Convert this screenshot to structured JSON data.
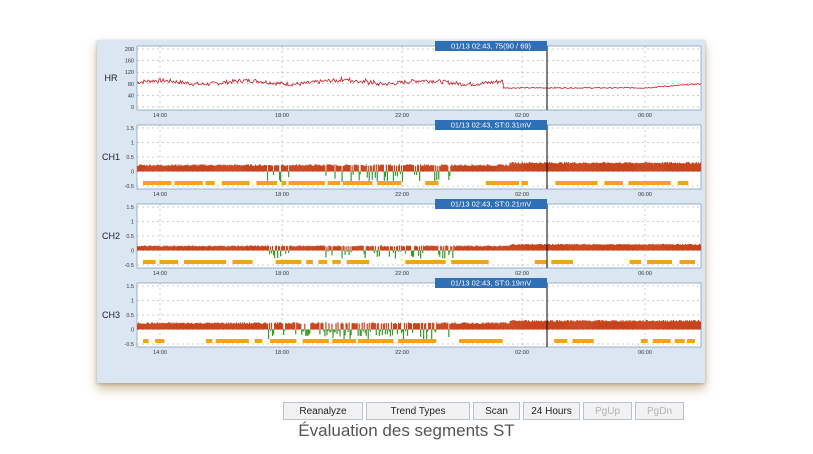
{
  "panels": [
    {
      "label": "HR",
      "readout": "01/13 02:43, 75(90 / 69)",
      "yticks": [
        "200",
        "160",
        "120",
        "80",
        "40",
        "0"
      ],
      "xticks": [
        "14:00",
        "18:00",
        "22:00",
        "02:00",
        "06:00"
      ]
    },
    {
      "label": "CH1",
      "readout": "01/13 02:43, ST:0.31mV",
      "yticks": [
        "1.5",
        "1",
        "0.5",
        "0",
        "-0.5"
      ],
      "xticks": [
        "14:00",
        "18:00",
        "22:00",
        "02:00",
        "06:00"
      ]
    },
    {
      "label": "CH2",
      "readout": "01/13 02:43, ST:0.21mV",
      "yticks": [
        "1.5",
        "1",
        "0.5",
        "0",
        "-0.5"
      ],
      "xticks": [
        "14:00",
        "18:00",
        "22:00",
        "02:00",
        "06:00"
      ]
    },
    {
      "label": "CH3",
      "readout": "01/13 02:43, ST:0.19mV",
      "yticks": [
        "1.5",
        "1",
        "0.5",
        "0",
        "-0.5"
      ],
      "xticks": [
        "14:00",
        "18:00",
        "22:00",
        "02:00",
        "06:00"
      ]
    }
  ],
  "buttons": [
    {
      "label": "Reanalyze",
      "enabled": true
    },
    {
      "label": "Trend Types",
      "enabled": true
    },
    {
      "label": "Scan",
      "enabled": true
    },
    {
      "label": "24 Hours",
      "enabled": true
    },
    {
      "label": "PgUp",
      "enabled": false
    },
    {
      "label": "PgDn",
      "enabled": false
    }
  ],
  "caption": "Évaluation des segments ST",
  "colors": {
    "hr_line": "#c21f2a",
    "st_elevation": "#c8441c",
    "st_depression": "#3a9a2a",
    "event_bar": "#f0a31c",
    "readout_bg": "#2f6fb5",
    "cursor": "#000000"
  }
}
